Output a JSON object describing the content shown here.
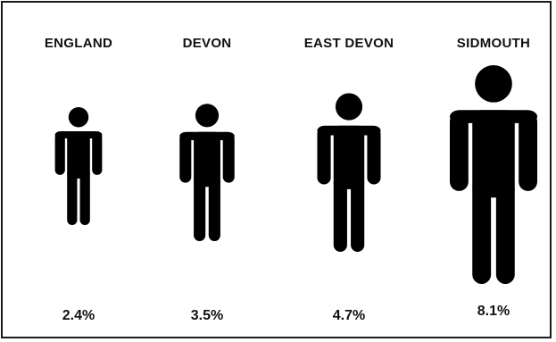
{
  "chart_data": {
    "type": "bar",
    "categories": [
      "ENGLAND",
      "DEVON",
      "EAST DEVON",
      "SIDMOUTH"
    ],
    "values": [
      2.4,
      3.5,
      4.7,
      8.1
    ],
    "value_labels": [
      "2.4%",
      "3.5%",
      "4.7%",
      "8.1%"
    ],
    "mark": "person-pictogram",
    "mark_color": "#000000",
    "title": "",
    "xlabel": "",
    "ylabel": "",
    "grid": false
  }
}
